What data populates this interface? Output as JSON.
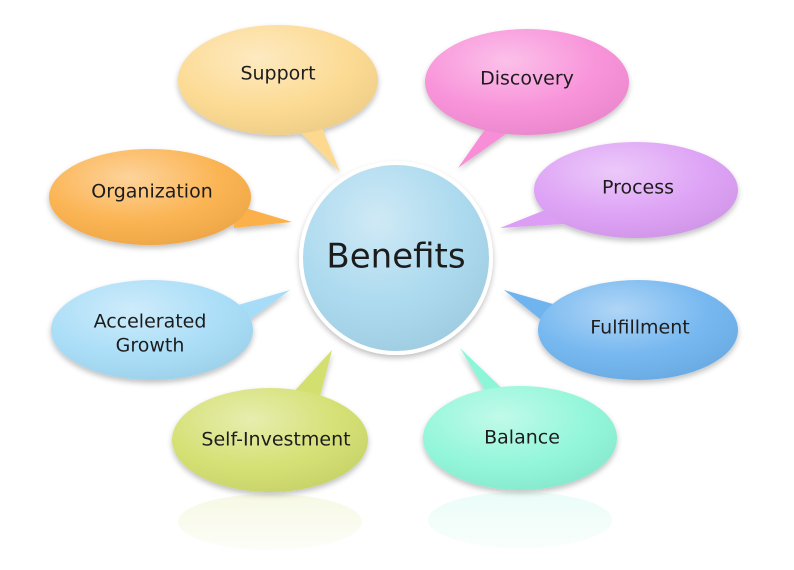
{
  "center": {
    "label": "Benefits",
    "color": "#a8d8ee"
  },
  "benefits": [
    {
      "label": "Support",
      "color": "#fcd98f"
    },
    {
      "label": "Discovery",
      "color": "#f88ed8"
    },
    {
      "label": "Organization",
      "color": "#fbb04a"
    },
    {
      "label": "Process",
      "color": "#dc9ef5"
    },
    {
      "label": "Accelerated",
      "label2": "Growth",
      "color": "#a6dcf7"
    },
    {
      "label": "Fulfillment",
      "color": "#6fb4ef"
    },
    {
      "label": "Self-Investment",
      "color": "#d3df6e"
    },
    {
      "label": "Balance",
      "color": "#8ef6d8"
    }
  ]
}
